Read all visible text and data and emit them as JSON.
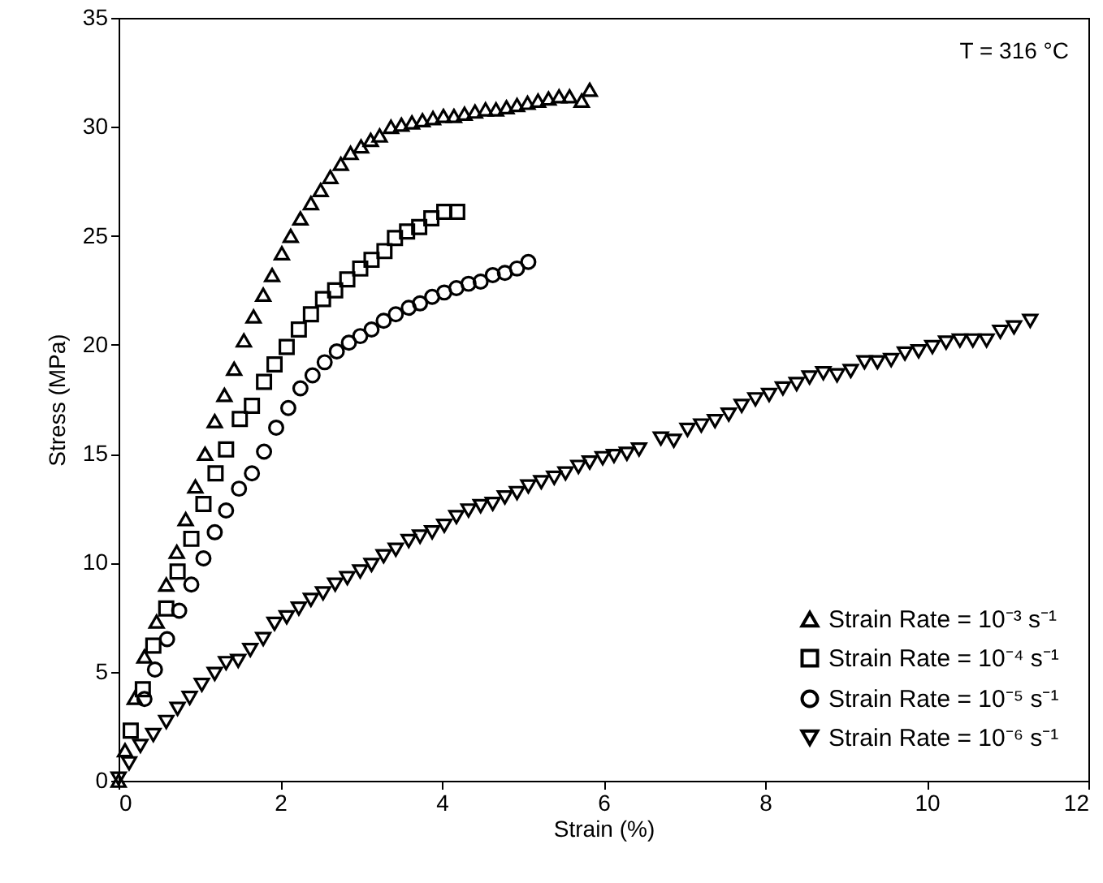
{
  "chart_data": {
    "type": "scatter",
    "xlabel": "Strain (%)",
    "ylabel": "Stress (MPa)",
    "annotations": [
      "T = 316 °C"
    ],
    "xlim": [
      0,
      12
    ],
    "xticks": [
      0,
      2,
      4,
      6,
      8,
      10,
      12
    ],
    "ylim": [
      0,
      35
    ],
    "yticks": [
      0,
      5,
      10,
      15,
      20,
      25,
      30,
      35
    ],
    "grid": false,
    "legend": "bottom right",
    "series": [
      {
        "name": "Strain Rate = 10⁻³ s⁻¹",
        "color": "#000000",
        "marker": "triangle",
        "x": [
          0,
          0.08,
          0.2,
          0.32,
          0.47,
          0.59,
          0.72,
          0.83,
          0.95,
          1.07,
          1.19,
          1.31,
          1.43,
          1.55,
          1.67,
          1.79,
          1.9,
          2.02,
          2.13,
          2.25,
          2.38,
          2.5,
          2.62,
          2.75,
          2.87,
          3.0,
          3.12,
          3.23,
          3.37,
          3.5,
          3.63,
          3.76,
          3.89,
          4.02,
          4.15,
          4.28,
          4.41,
          4.54,
          4.67,
          4.8,
          4.93,
          5.06,
          5.19,
          5.32,
          5.45,
          5.58,
          5.73,
          5.83
        ],
        "values": [
          0,
          1.4,
          3.8,
          5.7,
          7.3,
          9.0,
          10.5,
          12.0,
          13.5,
          15.0,
          16.5,
          17.7,
          18.9,
          20.2,
          21.3,
          22.3,
          23.2,
          24.2,
          25.0,
          25.8,
          26.5,
          27.1,
          27.7,
          28.3,
          28.8,
          29.1,
          29.4,
          29.6,
          30.0,
          30.1,
          30.2,
          30.3,
          30.4,
          30.5,
          30.5,
          30.6,
          30.7,
          30.8,
          30.8,
          30.9,
          31.0,
          31.1,
          31.2,
          31.3,
          31.4,
          31.4,
          31.2,
          31.7
        ]
      },
      {
        "name": "Strain Rate = 10⁻⁴ s⁻¹",
        "color": "#000000",
        "marker": "square",
        "x": [
          0.15,
          0.3,
          0.43,
          0.59,
          0.73,
          0.9,
          1.05,
          1.2,
          1.33,
          1.5,
          1.65,
          1.8,
          1.93,
          2.08,
          2.23,
          2.38,
          2.53,
          2.68,
          2.83,
          2.99,
          3.13,
          3.29,
          3.42,
          3.57,
          3.72,
          3.87,
          4.03,
          4.19
        ],
        "values": [
          2.3,
          4.2,
          6.2,
          7.9,
          9.6,
          11.1,
          12.7,
          14.1,
          15.2,
          16.6,
          17.2,
          18.3,
          19.1,
          19.9,
          20.7,
          21.4,
          22.1,
          22.5,
          23.0,
          23.5,
          23.9,
          24.3,
          24.9,
          25.2,
          25.4,
          25.8,
          26.1,
          26.1
        ]
      },
      {
        "name": "Strain Rate = 10⁻⁵ s⁻¹",
        "color": "#000000",
        "marker": "circle",
        "x": [
          0.32,
          0.45,
          0.6,
          0.75,
          0.9,
          1.05,
          1.19,
          1.33,
          1.49,
          1.65,
          1.8,
          1.95,
          2.1,
          2.25,
          2.4,
          2.55,
          2.7,
          2.85,
          2.99,
          3.13,
          3.28,
          3.43,
          3.59,
          3.73,
          3.88,
          4.03,
          4.18,
          4.33,
          4.48,
          4.63,
          4.78,
          4.93,
          5.07
        ],
        "values": [
          3.75,
          5.1,
          6.5,
          7.8,
          9.0,
          10.2,
          11.4,
          12.4,
          13.4,
          14.1,
          15.1,
          16.2,
          17.1,
          18.0,
          18.6,
          19.2,
          19.7,
          20.1,
          20.4,
          20.7,
          21.1,
          21.4,
          21.7,
          21.9,
          22.2,
          22.4,
          22.6,
          22.8,
          22.9,
          23.2,
          23.3,
          23.5,
          23.8
        ]
      },
      {
        "name": "Strain Rate = 10⁻⁶ s⁻¹",
        "color": "#000000",
        "marker": "triangle-down",
        "x": [
          0,
          0.13,
          0.27,
          0.43,
          0.59,
          0.73,
          0.88,
          1.03,
          1.19,
          1.33,
          1.48,
          1.63,
          1.79,
          1.93,
          2.08,
          2.23,
          2.38,
          2.53,
          2.68,
          2.83,
          2.99,
          3.13,
          3.28,
          3.43,
          3.59,
          3.73,
          3.88,
          4.03,
          4.18,
          4.33,
          4.48,
          4.63,
          4.78,
          4.93,
          5.07,
          5.23,
          5.39,
          5.53,
          5.69,
          5.83,
          5.99,
          6.13,
          6.29,
          6.44,
          6.71,
          6.87,
          7.04,
          7.21,
          7.38,
          7.55,
          7.71,
          7.88,
          8.05,
          8.22,
          8.39,
          8.55,
          8.72,
          8.89,
          9.06,
          9.23,
          9.39,
          9.56,
          9.73,
          9.9,
          10.07,
          10.24,
          10.41,
          10.57,
          10.74,
          10.91,
          11.08,
          11.28
        ],
        "values": [
          0.1,
          0.8,
          1.6,
          2.1,
          2.7,
          3.3,
          3.8,
          4.4,
          4.9,
          5.4,
          5.5,
          6.0,
          6.5,
          7.2,
          7.5,
          7.9,
          8.3,
          8.6,
          9.0,
          9.3,
          9.6,
          9.9,
          10.3,
          10.6,
          11.0,
          11.2,
          11.4,
          11.7,
          12.1,
          12.4,
          12.6,
          12.7,
          13.0,
          13.2,
          13.5,
          13.7,
          13.9,
          14.1,
          14.4,
          14.6,
          14.8,
          14.9,
          15.0,
          15.2,
          15.7,
          15.6,
          16.1,
          16.3,
          16.5,
          16.8,
          17.2,
          17.5,
          17.7,
          18.0,
          18.2,
          18.5,
          18.7,
          18.6,
          18.8,
          19.2,
          19.2,
          19.3,
          19.6,
          19.7,
          19.9,
          20.1,
          20.2,
          20.2,
          20.2,
          20.6,
          20.8,
          21.1
        ]
      }
    ]
  }
}
